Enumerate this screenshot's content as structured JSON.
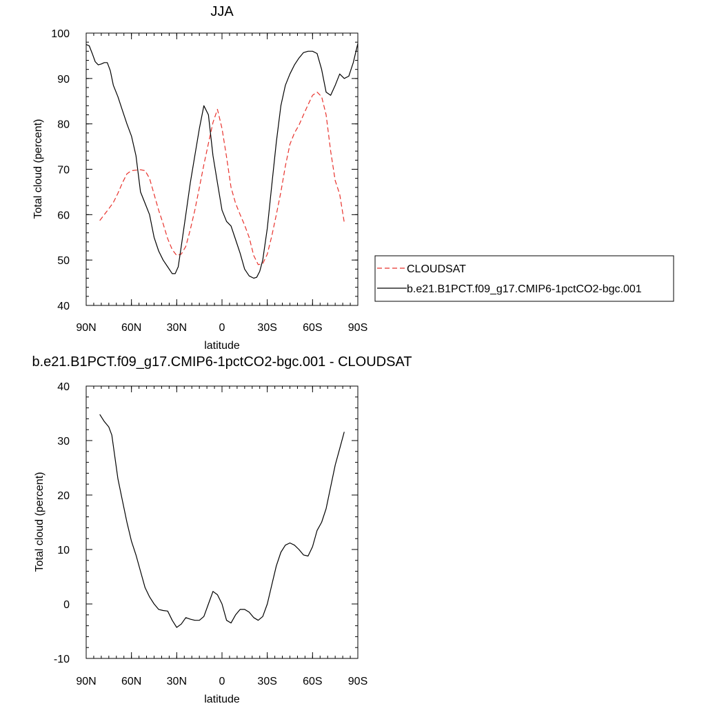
{
  "chart_data": [
    {
      "type": "line",
      "title": "JJA",
      "xlabel": "latitude",
      "ylabel": "Total cloud (percent)",
      "xlim": [
        90,
        -90
      ],
      "ylim": [
        40,
        100
      ],
      "xticks": [
        {
          "value": 90,
          "label": "90N"
        },
        {
          "value": 60,
          "label": "60N"
        },
        {
          "value": 30,
          "label": "30N"
        },
        {
          "value": 0,
          "label": "0"
        },
        {
          "value": -30,
          "label": "30S"
        },
        {
          "value": -60,
          "label": "60S"
        },
        {
          "value": -90,
          "label": "90S"
        }
      ],
      "yticks": [
        {
          "value": 40,
          "label": "40"
        },
        {
          "value": 50,
          "label": "50"
        },
        {
          "value": 60,
          "label": "60"
        },
        {
          "value": 70,
          "label": "70"
        },
        {
          "value": 80,
          "label": "80"
        },
        {
          "value": 90,
          "label": "90"
        },
        {
          "value": 100,
          "label": "100"
        }
      ],
      "grid": false,
      "legend_position": "right",
      "series": [
        {
          "name": "CLOUDSAT",
          "color": "#e8312b",
          "dash": true,
          "x": [
            81,
            78,
            75,
            72,
            69,
            66,
            63,
            60,
            57,
            54,
            51,
            48,
            45,
            42,
            39,
            36,
            33,
            30,
            27,
            24,
            21,
            18,
            15,
            12,
            9,
            6,
            3,
            0,
            -3,
            -6,
            -9,
            -12,
            -15,
            -18,
            -21,
            -24,
            -27,
            -30,
            -33,
            -36,
            -39,
            -42,
            -45,
            -48,
            -51,
            -54,
            -57,
            -60,
            -63,
            -66,
            -69,
            -72,
            -75,
            -78,
            -81
          ],
          "values": [
            58.7,
            60.0,
            61.3,
            62.7,
            64.7,
            67.0,
            69.0,
            69.7,
            69.8,
            69.9,
            69.7,
            68.0,
            64.5,
            61.0,
            58.0,
            54.7,
            52.3,
            51.0,
            51.3,
            53.0,
            56.7,
            61.0,
            66.0,
            71.0,
            75.7,
            80.3,
            83.2,
            79.0,
            72.7,
            66.0,
            62.5,
            60.0,
            57.7,
            55.0,
            51.0,
            49.0,
            49.2,
            51.3,
            55.3,
            60.0,
            65.0,
            70.7,
            75.5,
            78.0,
            79.7,
            82.0,
            84.2,
            86.3,
            87.0,
            86.0,
            82.0,
            74.0,
            67.5,
            64.5,
            58.3
          ]
        },
        {
          "name": "b.e21.B1PCT.f09_g17.CMIP6-1pctCO2-bgc.001",
          "color": "#000000",
          "dash": false,
          "x": [
            90,
            88,
            86,
            84,
            82,
            80,
            78,
            76,
            74,
            72,
            69,
            66,
            63,
            60,
            57,
            54,
            51,
            48,
            45,
            42,
            39,
            36,
            33,
            31,
            29,
            27,
            24,
            21,
            18,
            15,
            12,
            9,
            6,
            3,
            0,
            -3,
            -6,
            -9,
            -12,
            -15,
            -18,
            -21,
            -23,
            -25,
            -27,
            -30,
            -33,
            -36,
            -39,
            -42,
            -45,
            -48,
            -51,
            -54,
            -57,
            -60,
            -63,
            -66,
            -69,
            -72,
            -75,
            -78,
            -81,
            -84,
            -87,
            -90
          ],
          "values": [
            97.5,
            97.2,
            95.5,
            93.7,
            93.0,
            93.2,
            93.5,
            93.5,
            91.7,
            88.5,
            86.0,
            83.0,
            80.0,
            77.3,
            73.0,
            65.0,
            62.5,
            60.0,
            55.0,
            52.0,
            50.0,
            48.5,
            47.0,
            47.0,
            48.5,
            53.0,
            60.0,
            67.0,
            73.0,
            79.0,
            84.0,
            82.0,
            73.0,
            67.0,
            61.0,
            58.5,
            57.5,
            54.5,
            51.5,
            48.0,
            46.5,
            46.0,
            46.2,
            47.5,
            50.0,
            57.0,
            66.5,
            76.0,
            84.0,
            88.5,
            91.0,
            93.0,
            94.5,
            95.7,
            96.0,
            96.0,
            95.5,
            92.0,
            87.0,
            86.3,
            88.5,
            91.0,
            90.0,
            90.5,
            93.5,
            97.7
          ]
        }
      ]
    },
    {
      "type": "line",
      "title": "b.e21.B1PCT.f09_g17.CMIP6-1pctCO2-bgc.001 - CLOUDSAT",
      "xlabel": "latitude",
      "ylabel": "Total cloud (percent)",
      "xlim": [
        90,
        -90
      ],
      "ylim": [
        -10,
        40
      ],
      "xticks": [
        {
          "value": 90,
          "label": "90N"
        },
        {
          "value": 60,
          "label": "60N"
        },
        {
          "value": 30,
          "label": "30N"
        },
        {
          "value": 0,
          "label": "0"
        },
        {
          "value": -30,
          "label": "30S"
        },
        {
          "value": -60,
          "label": "60S"
        },
        {
          "value": -90,
          "label": "90S"
        }
      ],
      "yticks": [
        {
          "value": -10,
          "label": "-10"
        },
        {
          "value": 0,
          "label": "0"
        },
        {
          "value": 10,
          "label": "10"
        },
        {
          "value": 20,
          "label": "20"
        },
        {
          "value": 30,
          "label": "30"
        },
        {
          "value": 40,
          "label": "40"
        }
      ],
      "grid": false,
      "series": [
        {
          "color": "#000000",
          "dash": false,
          "x": [
            81,
            78,
            75,
            73,
            71,
            69,
            66,
            63,
            60,
            57,
            54,
            51,
            48,
            45,
            42,
            39,
            36,
            33,
            30,
            27,
            24,
            21,
            18,
            15,
            12,
            9,
            6,
            3,
            0,
            -3,
            -6,
            -9,
            -12,
            -15,
            -18,
            -21,
            -24,
            -27,
            -30,
            -33,
            -36,
            -39,
            -42,
            -45,
            -48,
            -51,
            -54,
            -57,
            -60,
            -63,
            -66,
            -69,
            -72,
            -75,
            -78,
            -81
          ],
          "values": [
            34.8,
            33.5,
            32.5,
            31.0,
            27.0,
            23.0,
            19.0,
            15.0,
            11.5,
            9.0,
            6.0,
            3.0,
            1.3,
            0.0,
            -1.0,
            -1.2,
            -1.3,
            -3.0,
            -4.3,
            -3.7,
            -2.5,
            -2.8,
            -3.0,
            -3.0,
            -2.3,
            0.0,
            2.3,
            1.7,
            0.0,
            -3.0,
            -3.5,
            -2.0,
            -1.0,
            -1.0,
            -1.5,
            -2.5,
            -3.0,
            -2.3,
            0.0,
            3.5,
            7.0,
            9.5,
            10.8,
            11.2,
            10.8,
            10.0,
            9.0,
            8.8,
            10.5,
            13.5,
            15.0,
            17.5,
            21.5,
            25.5,
            28.5,
            31.6
          ]
        }
      ]
    }
  ]
}
